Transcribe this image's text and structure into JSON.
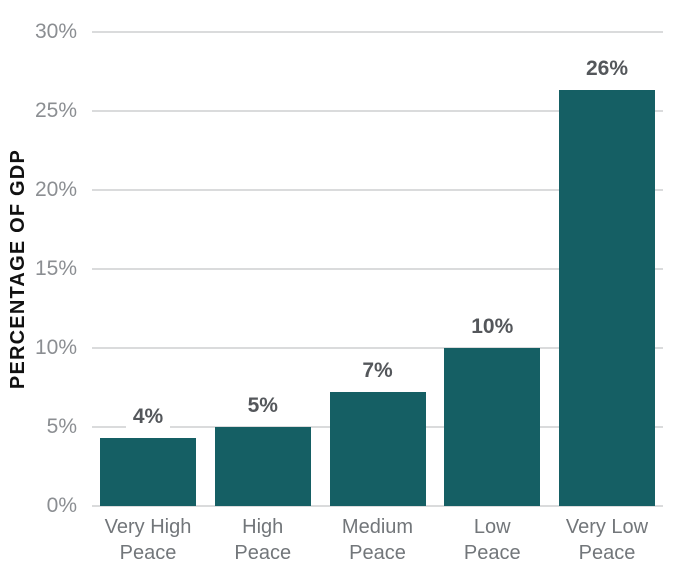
{
  "chart_data": {
    "type": "bar",
    "title": "",
    "xlabel": "",
    "ylabel": "PERCENTAGE OF GDP",
    "categories": [
      "Very High Peace",
      "High Peace",
      "Medium Peace",
      "Low Peace",
      "Very Low Peace"
    ],
    "category_labels": [
      "Very High\nPeace",
      "High\nPeace",
      "Medium\nPeace",
      "Low\nPeace",
      "Very Low\nPeace"
    ],
    "values": [
      4.3,
      5,
      7.2,
      10,
      26.3
    ],
    "value_labels": [
      "4%",
      "5%",
      "7%",
      "10%",
      "26%"
    ],
    "ylim": [
      0,
      30
    ],
    "yticks": [
      0,
      5,
      10,
      15,
      20,
      25,
      30
    ],
    "ytick_labels": [
      "0%",
      "5%",
      "10%",
      "15%",
      "20%",
      "25%",
      "30%"
    ],
    "grid": true,
    "legend": false,
    "colors": {
      "bar": "#155F64",
      "gridline": "#DADBDC",
      "ytick_label": "#8B8E92",
      "category_label": "#72767A",
      "value_label": "#54575B",
      "axis_title": "#111111",
      "background": "#FFFFFF"
    }
  }
}
